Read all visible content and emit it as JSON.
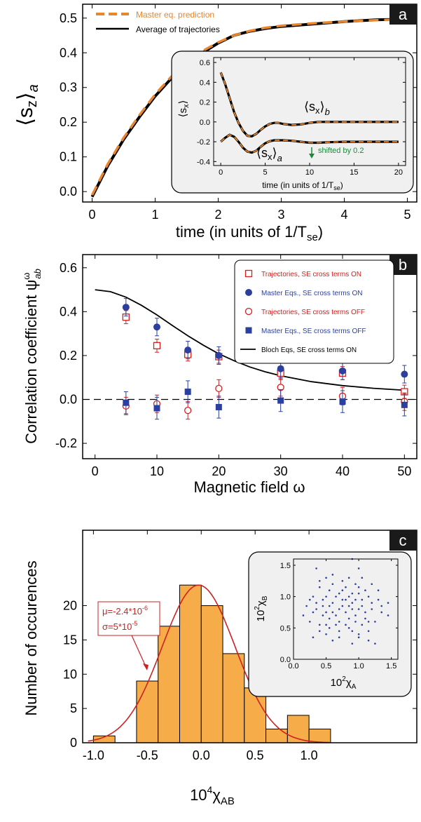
{
  "colors": {
    "orange": "#e8862d",
    "red": "#d81e1e",
    "blue": "#2b3f9e",
    "bar_fill": "#f6ac48",
    "fit_red": "#cc2222",
    "inset_bg": "#f0f0f0",
    "panel_tag_bg": "#1a1a1a",
    "annotation_green": "#1a8a3a"
  },
  "chart_data": [
    {
      "panel_letter": "a",
      "type": "line",
      "xlabel": "time (in units of 1/T",
      "xlabel_sub": "se",
      "xlabel_close": ")",
      "ylabel": "s",
      "ylabel_sub_z": "z",
      "ylabel_sub_a": "a",
      "xlim": [
        -0.15,
        5.15
      ],
      "ylim": [
        -0.03,
        0.54
      ],
      "xticks": [
        "0",
        "1",
        "2",
        "3",
        "4",
        "5"
      ],
      "yticks": [
        "0.0",
        "0.1",
        "0.2",
        "0.3",
        "0.4",
        "0.5"
      ],
      "legend": [
        "Master eq. prediction",
        "Average of trajectories"
      ],
      "legend_position": "top-left",
      "series": [
        {
          "name": "Master eq. prediction",
          "style": "dashed",
          "x": [
            0,
            0.25,
            0.5,
            0.75,
            1,
            1.25,
            1.5,
            1.75,
            2,
            2.25,
            2.5,
            2.75,
            3,
            3.5,
            4,
            4.5,
            4.75
          ],
          "y": [
            -0.01,
            0.08,
            0.155,
            0.22,
            0.28,
            0.33,
            0.37,
            0.405,
            0.43,
            0.45,
            0.463,
            0.472,
            0.478,
            0.485,
            0.49,
            0.494,
            0.495
          ]
        },
        {
          "name": "Average of trajectories",
          "style": "solid",
          "x": [
            0,
            0.25,
            0.5,
            0.75,
            1,
            1.25,
            1.5,
            1.75,
            2,
            2.25,
            2.5,
            2.75,
            3,
            3.5,
            4,
            4.5,
            4.75
          ],
          "y": [
            -0.015,
            0.075,
            0.15,
            0.215,
            0.275,
            0.325,
            0.365,
            0.4,
            0.428,
            0.45,
            0.462,
            0.47,
            0.476,
            0.483,
            0.49,
            0.495,
            0.496
          ]
        }
      ],
      "inset": {
        "type": "line",
        "ylabel": "s",
        "ylabel_sub": "x",
        "xlabel": "time (in units of 1/T",
        "xlabel_sub": "se",
        "xlabel_close": ")",
        "xlim": [
          -0.8,
          20.8
        ],
        "ylim": [
          -0.44,
          0.65
        ],
        "xticks": [
          "0",
          "5",
          "10",
          "15",
          "20"
        ],
        "yticks": [
          "0.6",
          "0.4",
          "0.2",
          "0.0",
          "-0.2",
          "-0.4"
        ],
        "label_b": "s",
        "label_b_sub": "x",
        "label_b_idx": "b",
        "label_a": "s",
        "label_a_sub": "x",
        "label_a_idx": "a",
        "annotation": "shifted by 0.2",
        "series": [
          {
            "name": "",
            "style": "dashed",
            "x": [
              0,
              0.5,
              1,
              1.5,
              2,
              2.5,
              3,
              3.5,
              4,
              4.5,
              5,
              5.5,
              6,
              6.5,
              7,
              8,
              9,
              10,
              11,
              12,
              14,
              16,
              18,
              20
            ],
            "y": [
              0.5,
              0.38,
              0.24,
              0.1,
              -0.01,
              -0.09,
              -0.14,
              -0.145,
              -0.12,
              -0.08,
              -0.045,
              -0.02,
              -0.01,
              -0.01,
              -0.02,
              -0.03,
              -0.025,
              -0.01,
              0.0,
              0.0,
              0.0,
              0.0,
              0.0,
              0.0
            ]
          },
          {
            "name": "",
            "style": "dashed",
            "x": [
              0,
              0.5,
              1,
              1.5,
              2,
              2.5,
              3,
              3.5,
              4,
              4.5,
              5,
              5.5,
              6,
              7,
              8,
              9,
              10,
              11,
              12,
              14,
              16,
              18,
              20
            ],
            "y": [
              -0.2,
              -0.16,
              -0.13,
              -0.15,
              -0.2,
              -0.26,
              -0.3,
              -0.31,
              -0.29,
              -0.25,
              -0.215,
              -0.195,
              -0.185,
              -0.185,
              -0.19,
              -0.2,
              -0.21,
              -0.21,
              -0.205,
              -0.2,
              -0.2,
              -0.2,
              -0.2
            ]
          }
        ]
      }
    },
    {
      "panel_letter": "b",
      "type": "scatter",
      "xlabel": "Magnetic field ω",
      "ylabel": "Correlation coefficient ψ",
      "ylabel_sup": "ω",
      "ylabel_sub": "ab",
      "xlim": [
        -2,
        52
      ],
      "ylim": [
        -0.27,
        0.66
      ],
      "xticks": [
        "0",
        "10",
        "20",
        "30",
        "40",
        "50"
      ],
      "yticks": [
        "-0.2",
        "0.0",
        "0.2",
        "0.4",
        "0.6"
      ],
      "legend_position": "top-right",
      "series": [
        {
          "name": "Trajectories, SE cross terms ON",
          "marker": "open-square",
          "color": "red",
          "x": [
            5,
            10,
            15,
            20,
            30,
            40,
            50
          ],
          "y": [
            0.375,
            0.245,
            0.205,
            0.195,
            0.12,
            0.12,
            0.035
          ],
          "err": [
            0.03,
            0.03,
            0.03,
            0.03,
            0.03,
            0.03,
            0.03
          ]
        },
        {
          "name": "Master Eqs., SE cross terms ON",
          "marker": "filled-circle",
          "color": "blue",
          "x": [
            5,
            10,
            15,
            20,
            30,
            40,
            50
          ],
          "y": [
            0.42,
            0.33,
            0.225,
            0.2,
            0.14,
            0.13,
            0.115
          ],
          "err": [
            0.04,
            0.04,
            0.04,
            0.04,
            0.04,
            0.04,
            0.04
          ]
        },
        {
          "name": "Trajectories, SE cross terms OFF",
          "marker": "open-circle",
          "color": "red",
          "x": [
            5,
            10,
            15,
            20,
            30,
            40,
            50
          ],
          "y": [
            -0.03,
            -0.02,
            -0.05,
            0.05,
            0.055,
            0.015,
            -0.01
          ],
          "err": [
            0.04,
            0.04,
            0.04,
            0.04,
            0.04,
            0.04,
            0.04
          ]
        },
        {
          "name": "Master Eqs., SE cross terms OFF",
          "marker": "filled-square",
          "color": "blue",
          "x": [
            5,
            10,
            15,
            20,
            30,
            40,
            50
          ],
          "y": [
            -0.015,
            -0.04,
            0.035,
            -0.035,
            -0.005,
            -0.01,
            -0.025
          ],
          "err": [
            0.05,
            0.05,
            0.05,
            0.05,
            0.05,
            0.05,
            0.05
          ]
        },
        {
          "name": "Bloch Eqs, SE cross terms ON",
          "style": "solid-line",
          "x": [
            0,
            2.5,
            5,
            7.5,
            10,
            12.5,
            15,
            17.5,
            20,
            22.5,
            25,
            27.5,
            30,
            35,
            40,
            45,
            50
          ],
          "y": [
            0.5,
            0.491,
            0.466,
            0.429,
            0.385,
            0.337,
            0.29,
            0.247,
            0.208,
            0.176,
            0.148,
            0.126,
            0.108,
            0.081,
            0.063,
            0.051,
            0.042
          ]
        }
      ],
      "reference_line": {
        "y": 0.0,
        "style": "dashed"
      }
    },
    {
      "panel_letter": "c",
      "type": "bar",
      "xlabel": "10",
      "xlabel_sup": "4",
      "xlabel_sym": "χ",
      "xlabel_sub": "AB",
      "ylabel": "Number of occurences",
      "xlim": [
        -1.1,
        2.0
      ],
      "ylim": [
        0,
        31
      ],
      "xticks": [
        "-1.0",
        "-0.5",
        "0.0",
        "0.5",
        "1.0"
      ],
      "yticks": [
        "0",
        "5",
        "10",
        "15",
        "20"
      ],
      "bin_edges": [
        -1.0,
        -0.8,
        -0.6,
        -0.4,
        -0.2,
        0.0,
        0.2,
        0.4,
        0.6,
        0.8,
        1.0,
        1.2
      ],
      "values": [
        1,
        0,
        9,
        17,
        23,
        20,
        13,
        8,
        2,
        4,
        2
      ],
      "fit": {
        "mu_text": "μ=-2.4*10",
        "mu_exp": "-6",
        "sigma_text": "σ=5*10",
        "sigma_exp": "-5",
        "peak": 23,
        "mean": -0.024,
        "sd": 0.34
      },
      "inset": {
        "type": "scatter",
        "xlabel": "10",
        "xlabel_sup": "2",
        "xlabel_sym": "χ",
        "xlabel_sub": "A",
        "ylabel": "10",
        "ylabel_sup": "2",
        "ylabel_sym": "χ",
        "ylabel_sub": "B",
        "xlim": [
          0,
          1.6
        ],
        "ylim": [
          0,
          1.6
        ],
        "xticks": [
          "0.0",
          "0.5",
          "1.0",
          "1.5"
        ],
        "yticks": [
          "0.0",
          "0.5",
          "1.0",
          "1.5"
        ],
        "points": [
          [
            0.35,
            1.45
          ],
          [
            0.9,
            1.6
          ],
          [
            1.0,
            1.45
          ],
          [
            1.05,
            1.3
          ],
          [
            0.5,
            1.3
          ],
          [
            0.6,
            1.2
          ],
          [
            0.75,
            1.25
          ],
          [
            0.95,
            1.2
          ],
          [
            1.2,
            1.2
          ],
          [
            0.4,
            1.15
          ],
          [
            0.55,
            1.1
          ],
          [
            0.7,
            1.05
          ],
          [
            0.85,
            1.0
          ],
          [
            1.0,
            1.05
          ],
          [
            1.15,
            1.0
          ],
          [
            1.3,
            0.95
          ],
          [
            1.45,
            0.9
          ],
          [
            0.3,
            1.0
          ],
          [
            0.45,
            0.95
          ],
          [
            0.6,
            0.9
          ],
          [
            0.75,
            0.85
          ],
          [
            0.9,
            0.9
          ],
          [
            1.05,
            0.85
          ],
          [
            1.2,
            0.8
          ],
          [
            1.35,
            0.75
          ],
          [
            0.2,
            0.85
          ],
          [
            0.35,
            0.8
          ],
          [
            0.5,
            0.75
          ],
          [
            0.65,
            0.7
          ],
          [
            0.8,
            0.75
          ],
          [
            0.95,
            0.7
          ],
          [
            1.1,
            0.65
          ],
          [
            1.25,
            0.6
          ],
          [
            0.25,
            0.6
          ],
          [
            0.4,
            0.55
          ],
          [
            0.55,
            0.5
          ],
          [
            0.7,
            0.45
          ],
          [
            0.85,
            0.5
          ],
          [
            1.0,
            0.4
          ],
          [
            1.15,
            0.45
          ],
          [
            0.3,
            0.35
          ],
          [
            0.6,
            0.3
          ],
          [
            0.9,
            0.25
          ],
          [
            1.25,
            0.25
          ],
          [
            0.5,
            0.4
          ],
          [
            0.8,
            0.55
          ],
          [
            0.65,
            1.0
          ],
          [
            0.95,
            0.95
          ],
          [
            1.1,
            1.1
          ],
          [
            0.45,
            0.7
          ],
          [
            0.7,
            0.6
          ],
          [
            0.85,
            0.65
          ],
          [
            1.05,
            0.55
          ],
          [
            0.35,
            0.9
          ],
          [
            0.55,
            0.85
          ],
          [
            0.75,
            0.95
          ],
          [
            1.0,
            0.8
          ],
          [
            1.3,
            1.1
          ],
          [
            0.6,
            1.35
          ],
          [
            0.8,
            1.15
          ],
          [
            0.15,
            0.7
          ],
          [
            1.45,
            0.7
          ],
          [
            0.4,
            0.45
          ],
          [
            0.9,
            0.45
          ],
          [
            1.15,
            0.3
          ],
          [
            0.5,
            1.0
          ],
          [
            0.7,
            0.8
          ],
          [
            0.9,
            1.05
          ],
          [
            1.05,
            0.95
          ],
          [
            0.65,
            0.55
          ],
          [
            0.85,
            0.85
          ],
          [
            0.3,
            0.75
          ],
          [
            1.2,
            0.9
          ],
          [
            0.95,
            0.6
          ],
          [
            0.55,
            0.65
          ],
          [
            0.75,
            1.1
          ],
          [
            1.0,
            1.15
          ],
          [
            0.45,
            0.85
          ],
          [
            0.6,
            0.75
          ],
          [
            0.8,
            0.95
          ],
          [
            1.1,
            0.75
          ],
          [
            1.35,
            0.85
          ],
          [
            0.25,
            0.95
          ],
          [
            0.7,
            0.35
          ],
          [
            1.0,
            0.35
          ],
          [
            0.5,
            0.55
          ],
          [
            0.9,
            0.8
          ],
          [
            1.15,
            0.6
          ],
          [
            0.4,
            1.25
          ],
          [
            0.85,
            1.3
          ]
        ]
      }
    }
  ]
}
